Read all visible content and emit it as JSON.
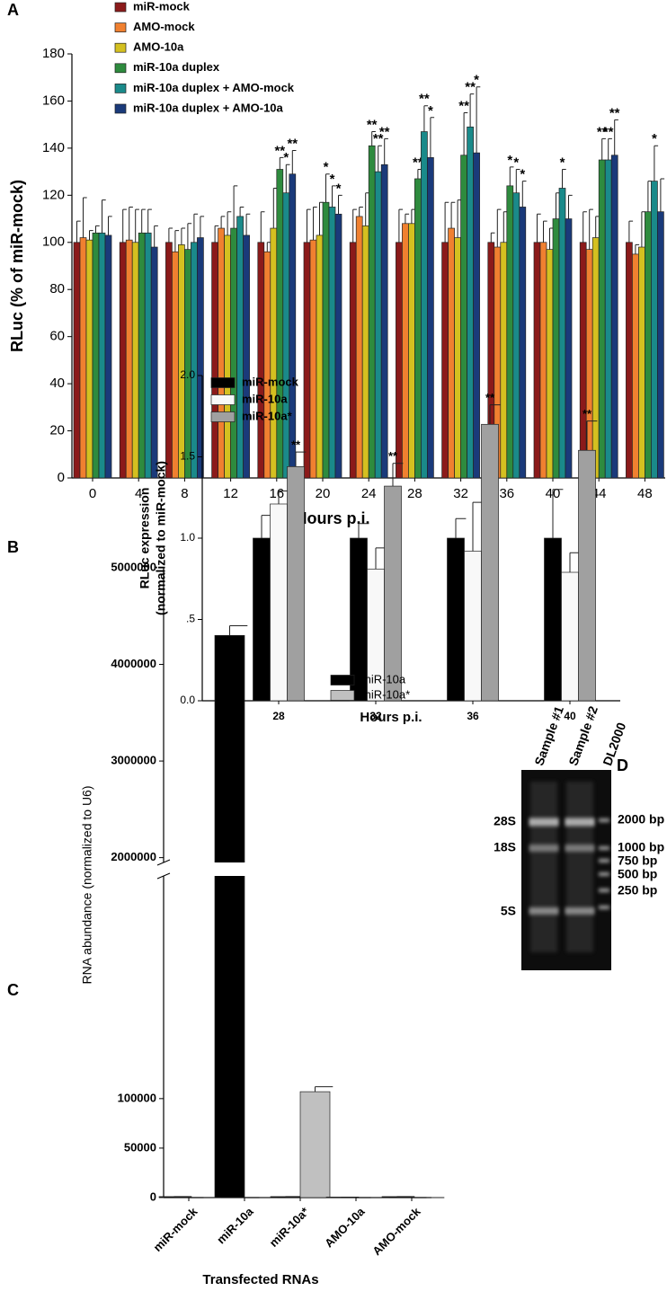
{
  "chart_data": [
    {
      "type": "bar",
      "panel_label": "A",
      "ylabel": "RLuc (% of miR-mock)",
      "xlabel": "Hours p.i.",
      "categories": [
        "0",
        "4",
        "8",
        "12",
        "16",
        "20",
        "24",
        "28",
        "32",
        "36",
        "40",
        "44",
        "48"
      ],
      "ylim": [
        0,
        180
      ],
      "yticks": [
        0,
        20,
        40,
        60,
        80,
        100,
        120,
        140,
        160,
        180
      ],
      "legend": "top-left",
      "series": [
        {
          "name": "miR-mock",
          "color": "#8b1a1a",
          "values": [
            100,
            100,
            100,
            100,
            100,
            100,
            100,
            100,
            100,
            100,
            100,
            100,
            100
          ],
          "errors": [
            9,
            14,
            6,
            7,
            13,
            14,
            14,
            14,
            17,
            4,
            12,
            13,
            9
          ],
          "significance": [
            null,
            null,
            null,
            null,
            null,
            null,
            null,
            null,
            null,
            null,
            null,
            null,
            null
          ]
        },
        {
          "name": "AMO-mock",
          "color": "#f08030",
          "values": [
            102,
            101,
            96,
            106,
            96,
            101,
            111,
            108,
            106,
            98,
            100,
            97,
            95
          ],
          "errors": [
            17,
            14,
            9,
            5,
            4,
            14,
            4,
            4,
            11,
            16,
            9,
            17,
            4
          ],
          "significance": [
            null,
            null,
            null,
            null,
            null,
            null,
            null,
            null,
            null,
            null,
            null,
            null,
            null
          ]
        },
        {
          "name": "AMO-10a",
          "color": "#d4c020",
          "values": [
            101,
            100,
            99,
            103,
            106,
            103,
            107,
            108,
            102,
            100,
            97,
            102,
            98
          ],
          "errors": [
            4,
            14,
            7,
            10,
            17,
            14,
            14,
            6,
            16,
            13,
            9,
            9,
            15
          ],
          "significance": [
            null,
            null,
            null,
            null,
            null,
            null,
            null,
            null,
            null,
            null,
            null,
            null,
            null
          ]
        },
        {
          "name": "miR-10a duplex",
          "color": "#2e8b3e",
          "values": [
            104,
            104,
            97,
            106,
            131,
            117,
            141,
            127,
            137,
            124,
            110,
            135,
            113
          ],
          "errors": [
            3,
            10,
            11,
            18,
            5,
            12,
            6,
            4,
            18,
            8,
            11,
            9,
            13
          ],
          "significance": [
            null,
            null,
            null,
            null,
            "**",
            "*",
            "**",
            "**",
            "**",
            "*",
            null,
            "**",
            null
          ]
        },
        {
          "name": "miR-10a duplex + AMO-mock",
          "color": "#1a8a8a",
          "values": [
            104,
            104,
            100,
            111,
            121,
            115,
            130,
            147,
            149,
            121,
            123,
            135,
            126
          ],
          "errors": [
            14,
            10,
            12,
            4,
            12,
            9,
            11,
            11,
            14,
            10,
            8,
            9,
            15
          ],
          "significance": [
            null,
            null,
            null,
            null,
            "*",
            "*",
            "**",
            "**",
            "**",
            "*",
            "*",
            "**",
            "*"
          ]
        },
        {
          "name": "miR-10a duplex + AMO-10a",
          "color": "#1a3a7a",
          "values": [
            103,
            98,
            102,
            103,
            129,
            112,
            133,
            136,
            138,
            115,
            110,
            137,
            113
          ],
          "errors": [
            8,
            9,
            9,
            9,
            10,
            8,
            11,
            17,
            28,
            11,
            10,
            15,
            14
          ],
          "significance": [
            null,
            null,
            null,
            null,
            "**",
            "*",
            "**",
            "*",
            "*",
            "*",
            null,
            "**",
            null
          ]
        }
      ]
    },
    {
      "type": "bar",
      "panel_label": "B",
      "ylabel": [
        "RLuc expression",
        "(normalized to miR-mock)"
      ],
      "xlabel": "Hours p.i.",
      "categories": [
        "28",
        "32",
        "36",
        "40"
      ],
      "ylim": [
        0,
        2
      ],
      "yticks": [
        {
          "value": 0,
          "label": "0.0"
        },
        {
          "value": 0.5,
          "label": ".5"
        },
        {
          "value": 1,
          "label": "1.0"
        },
        {
          "value": 1.5,
          "label": "1.5"
        },
        {
          "value": 2,
          "label": "2.0"
        }
      ],
      "legend": "top-left",
      "series": [
        {
          "name": "miR-mock",
          "color": "#000000",
          "values": [
            1.0,
            1.0,
            1.0,
            1.0
          ],
          "errors": [
            0.14,
            0.09,
            0.12,
            0.3
          ],
          "significance": [
            null,
            null,
            null,
            null
          ]
        },
        {
          "name": "miR-10a",
          "color": "#f8f8f8",
          "values": [
            1.21,
            0.81,
            0.92,
            0.79
          ],
          "errors": [
            0.08,
            0.13,
            0.3,
            0.12
          ],
          "significance": [
            null,
            null,
            null,
            null
          ]
        },
        {
          "name": "miR-10a*",
          "color": "#a0a0a0",
          "values": [
            1.44,
            1.32,
            1.7,
            1.54
          ],
          "errors": [
            0.09,
            0.14,
            0.12,
            0.18
          ],
          "significance": [
            "**",
            "**",
            "**",
            "**"
          ]
        }
      ]
    },
    {
      "type": "bar",
      "panel_label": "C",
      "ylabel": "RNA abundance (normalized to U6)",
      "xlabel": "Transfected RNAs",
      "categories": [
        "miR-mock",
        "miR-10a",
        "miR-10a*",
        "AMO-10a",
        "AMO-mock"
      ],
      "ylim": [
        0,
        5000000
      ],
      "axis_break": [
        325000,
        1950000
      ],
      "yticks": [
        0,
        50000,
        100000,
        2000000,
        3000000,
        4000000,
        5000000
      ],
      "legend": "top-right",
      "series": [
        {
          "name": "miR-10a",
          "color": "#000000",
          "values": [
            1000,
            4300000,
            1000,
            500,
            1000
          ],
          "errors": [
            0,
            100000,
            0,
            0,
            0
          ],
          "significance": [
            null,
            null,
            null,
            null,
            null
          ]
        },
        {
          "name": "miR-10a*",
          "color": "#c0c0c0",
          "values": [
            0,
            0,
            107000,
            0,
            0
          ],
          "errors": [
            0,
            0,
            5000,
            0,
            0
          ],
          "significance": [
            null,
            null,
            null,
            null,
            null
          ]
        }
      ]
    }
  ],
  "gel": {
    "panel_label": "D",
    "lanes": [
      "Sample #1",
      "Sample #2",
      "DL2000"
    ],
    "rna_labels": [
      "28S",
      "18S",
      "5S"
    ],
    "markers": [
      "2000 bp",
      "1000 bp",
      "750 bp",
      "500 bp",
      "250 bp"
    ]
  }
}
